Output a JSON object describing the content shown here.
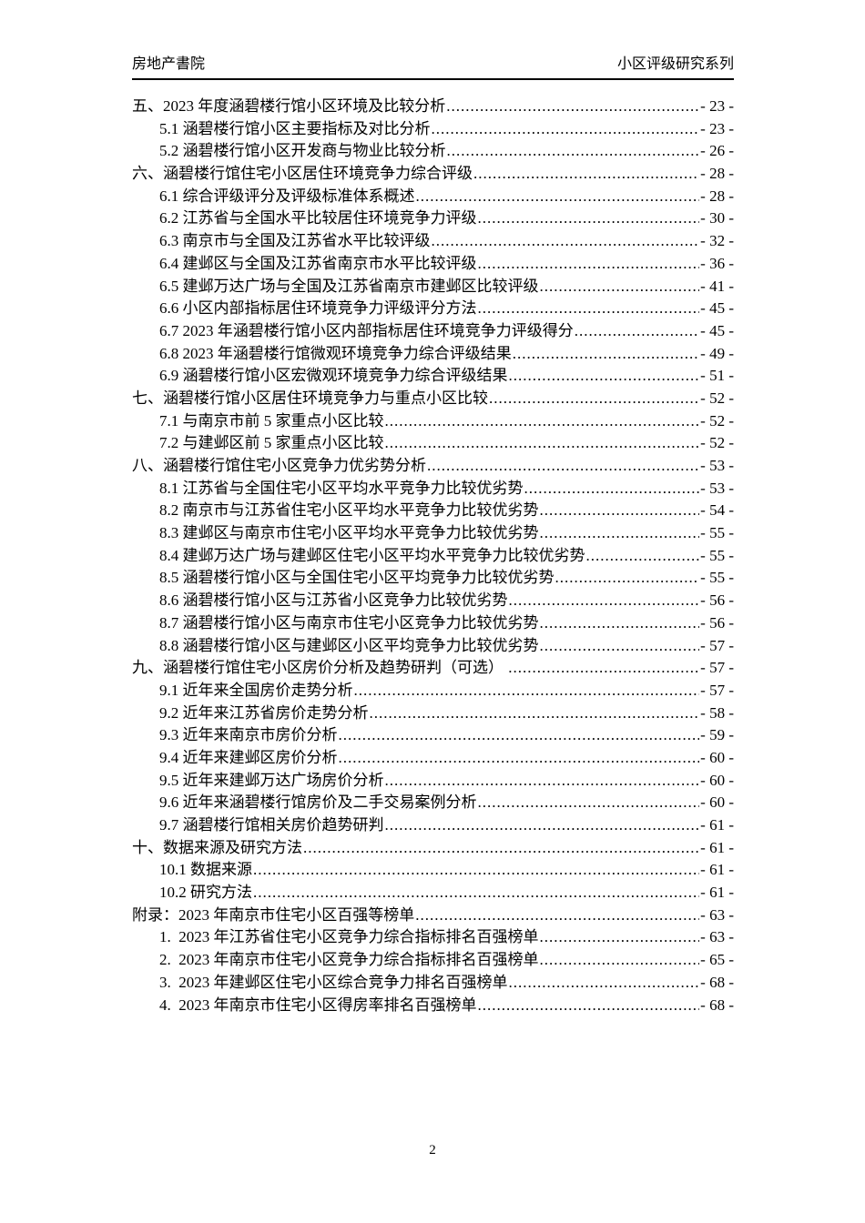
{
  "header": {
    "left": "房地产書院",
    "right": "小区评级研究系列"
  },
  "footer": {
    "page_number": "2"
  },
  "toc": {
    "entries": [
      {
        "level": 1,
        "label": "五、2023 年度涵碧楼行馆小区环境及比较分析",
        "page": "- 23 -"
      },
      {
        "level": 2,
        "label": "5.1 涵碧楼行馆小区主要指标及对比分析",
        "page": "- 23 -"
      },
      {
        "level": 2,
        "label": "5.2 涵碧楼行馆小区开发商与物业比较分析",
        "page": "- 26 -"
      },
      {
        "level": 1,
        "label": "六、涵碧楼行馆住宅小区居住环境竞争力综合评级",
        "page": "- 28 -"
      },
      {
        "level": 2,
        "label": "6.1 综合评级评分及评级标准体系概述",
        "page": "- 28 -"
      },
      {
        "level": 2,
        "label": "6.2 江苏省与全国水平比较居住环境竞争力评级",
        "page": "- 30 -"
      },
      {
        "level": 2,
        "label": "6.3 南京市与全国及江苏省水平比较评级",
        "page": "- 32 -"
      },
      {
        "level": 2,
        "label": "6.4 建邺区与全国及江苏省南京市水平比较评级",
        "page": "- 36 -"
      },
      {
        "level": 2,
        "label": "6.5 建邺万达广场与全国及江苏省南京市建邺区比较评级",
        "page": "- 41 -"
      },
      {
        "level": 2,
        "label": "6.6 小区内部指标居住环境竞争力评级评分方法",
        "page": "- 45 -"
      },
      {
        "level": 2,
        "label": "6.7 2023 年涵碧楼行馆小区内部指标居住环境竞争力评级得分",
        "page": "- 45 -"
      },
      {
        "level": 2,
        "label": "6.8 2023 年涵碧楼行馆微观环境竞争力综合评级结果",
        "page": "- 49 -"
      },
      {
        "level": 2,
        "label": "6.9 涵碧楼行馆小区宏微观环境竞争力综合评级结果",
        "page": "- 51 -"
      },
      {
        "level": 1,
        "label": "七、涵碧楼行馆小区居住环境竞争力与重点小区比较",
        "page": "- 52 -"
      },
      {
        "level": 2,
        "label": "7.1 与南京市前 5 家重点小区比较",
        "page": "- 52 -"
      },
      {
        "level": 2,
        "label": "7.2 与建邺区前 5 家重点小区比较",
        "page": "- 52 -"
      },
      {
        "level": 1,
        "label": "八、涵碧楼行馆住宅小区竞争力优劣势分析",
        "page": "- 53 -"
      },
      {
        "level": 2,
        "label": "8.1 江苏省与全国住宅小区平均水平竞争力比较优劣势",
        "page": "- 53 -"
      },
      {
        "level": 2,
        "label": "8.2 南京市与江苏省住宅小区平均水平竞争力比较优劣势",
        "page": "- 54 -"
      },
      {
        "level": 2,
        "label": "8.3 建邺区与南京市住宅小区平均水平竞争力比较优劣势",
        "page": "- 55 -"
      },
      {
        "level": 2,
        "label": "8.4 建邺万达广场与建邺区住宅小区平均水平竞争力比较优劣势",
        "page": "- 55 -"
      },
      {
        "level": 2,
        "label": "8.5 涵碧楼行馆小区与全国住宅小区平均竞争力比较优劣势",
        "page": "- 55 -"
      },
      {
        "level": 2,
        "label": "8.6 涵碧楼行馆小区与江苏省小区竞争力比较优劣势",
        "page": "- 56 -"
      },
      {
        "level": 2,
        "label": "8.7 涵碧楼行馆小区与南京市住宅小区竞争力比较优劣势",
        "page": "- 56 -"
      },
      {
        "level": 2,
        "label": "8.8 涵碧楼行馆小区与建邺区小区平均竞争力比较优劣势",
        "page": "- 57 -"
      },
      {
        "level": 1,
        "label": "九、涵碧楼行馆住宅小区房价分析及趋势研判（可选） ",
        "page": "- 57 -"
      },
      {
        "level": 2,
        "label": "9.1 近年来全国房价走势分析",
        "page": "- 57 -"
      },
      {
        "level": 2,
        "label": "9.2 近年来江苏省房价走势分析",
        "page": "- 58 -"
      },
      {
        "level": 2,
        "label": "9.3 近年来南京市房价分析",
        "page": "- 59 -"
      },
      {
        "level": 2,
        "label": "9.4 近年来建邺区房价分析",
        "page": "- 60 -"
      },
      {
        "level": 2,
        "label": "9.5 近年来建邺万达广场房价分析",
        "page": "- 60 -"
      },
      {
        "level": 2,
        "label": "9.6 近年来涵碧楼行馆房价及二手交易案例分析",
        "page": "- 60 -"
      },
      {
        "level": 2,
        "label": "9.7 涵碧楼行馆相关房价趋势研判",
        "page": "- 61 -"
      },
      {
        "level": 1,
        "label": "十、数据来源及研究方法",
        "page": "- 61 -"
      },
      {
        "level": 2,
        "label": "10.1 数据来源",
        "page": "- 61 -"
      },
      {
        "level": 2,
        "label": "10.2 研究方法",
        "page": "- 61 -"
      },
      {
        "level": 1,
        "label": "附录：2023 年南京市住宅小区百强等榜单",
        "page": "- 63 -"
      },
      {
        "level": 2,
        "label": "1.  2023 年江苏省住宅小区竞争力综合指标排名百强榜单",
        "page": "- 63 -"
      },
      {
        "level": 2,
        "label": "2.  2023 年南京市住宅小区竞争力综合指标排名百强榜单",
        "page": "- 65 -"
      },
      {
        "level": 2,
        "label": "3.  2023 年建邺区住宅小区综合竞争力排名百强榜单",
        "page": "- 68 -"
      },
      {
        "level": 2,
        "label": "4.  2023 年南京市住宅小区得房率排名百强榜单",
        "page": "- 68 -"
      }
    ]
  }
}
